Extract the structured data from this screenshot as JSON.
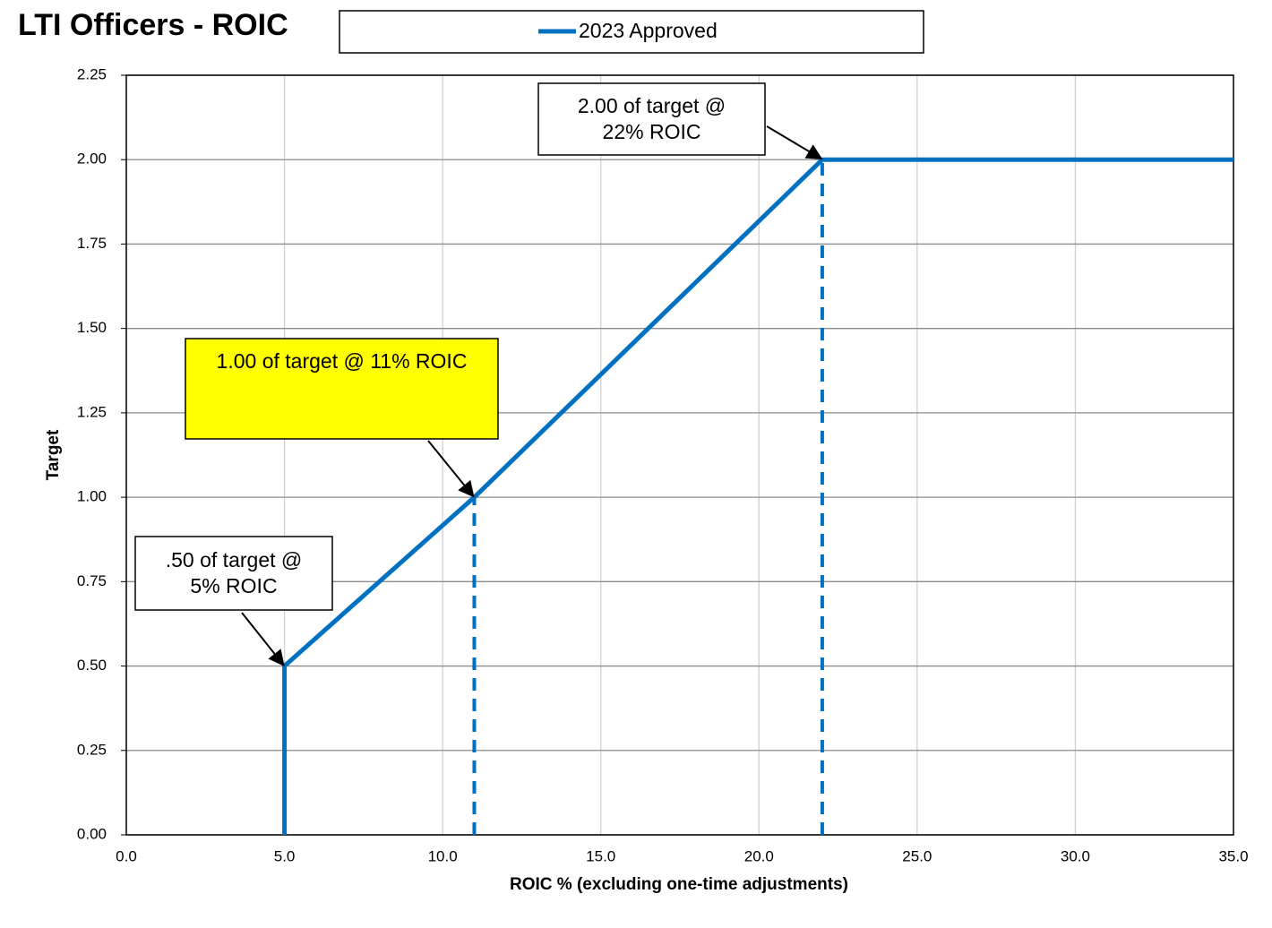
{
  "chart_data": {
    "type": "line",
    "title": "LTI Officers - ROIC",
    "x_label": "ROIC % (excluding one-time adjustments)",
    "y_label": "Target",
    "x": [
      5,
      5,
      11,
      22,
      35
    ],
    "series": [
      {
        "name": "2023 Approved",
        "color": "#0070c0",
        "values": [
          0,
          0.5,
          1,
          2,
          2
        ]
      }
    ],
    "xlim": [
      0,
      35
    ],
    "ylim": [
      0,
      2.25
    ],
    "xticks": [
      {
        "value": 0,
        "label": "0.0"
      },
      {
        "value": 5,
        "label": "5.0"
      },
      {
        "value": 10,
        "label": "10.0"
      },
      {
        "value": 15,
        "label": "15.0"
      },
      {
        "value": 20,
        "label": "20.0"
      },
      {
        "value": 25,
        "label": "25.0"
      },
      {
        "value": 30,
        "label": "30.0"
      },
      {
        "value": 35,
        "label": "35.0"
      }
    ],
    "yticks": [
      {
        "value": 0,
        "label": "0.00"
      },
      0.25,
      {
        "value": 0.5,
        "label": "0.50"
      },
      0.75,
      {
        "value": 1,
        "label": "1.00"
      },
      1.25,
      {
        "value": 1.5,
        "label": "1.50"
      },
      1.75,
      {
        "value": 2,
        "label": "2.00"
      },
      2.25
    ],
    "grid": true,
    "legend": "top",
    "annotations": [
      {
        "lines": [
          ".50 of target @",
          "5% ROIC"
        ],
        "x": 5,
        "y": 0.5,
        "drop_line": false,
        "background": "#ffffff"
      },
      {
        "lines": [
          "1.00 of target @ 11% ROIC"
        ],
        "x": 11,
        "y": 1,
        "drop_line": true,
        "background": "#ffff00"
      },
      {
        "lines": [
          "2.00 of target @",
          "22% ROIC"
        ],
        "x": 22,
        "y": 2,
        "drop_line": true,
        "background": "#ffffff"
      }
    ]
  }
}
